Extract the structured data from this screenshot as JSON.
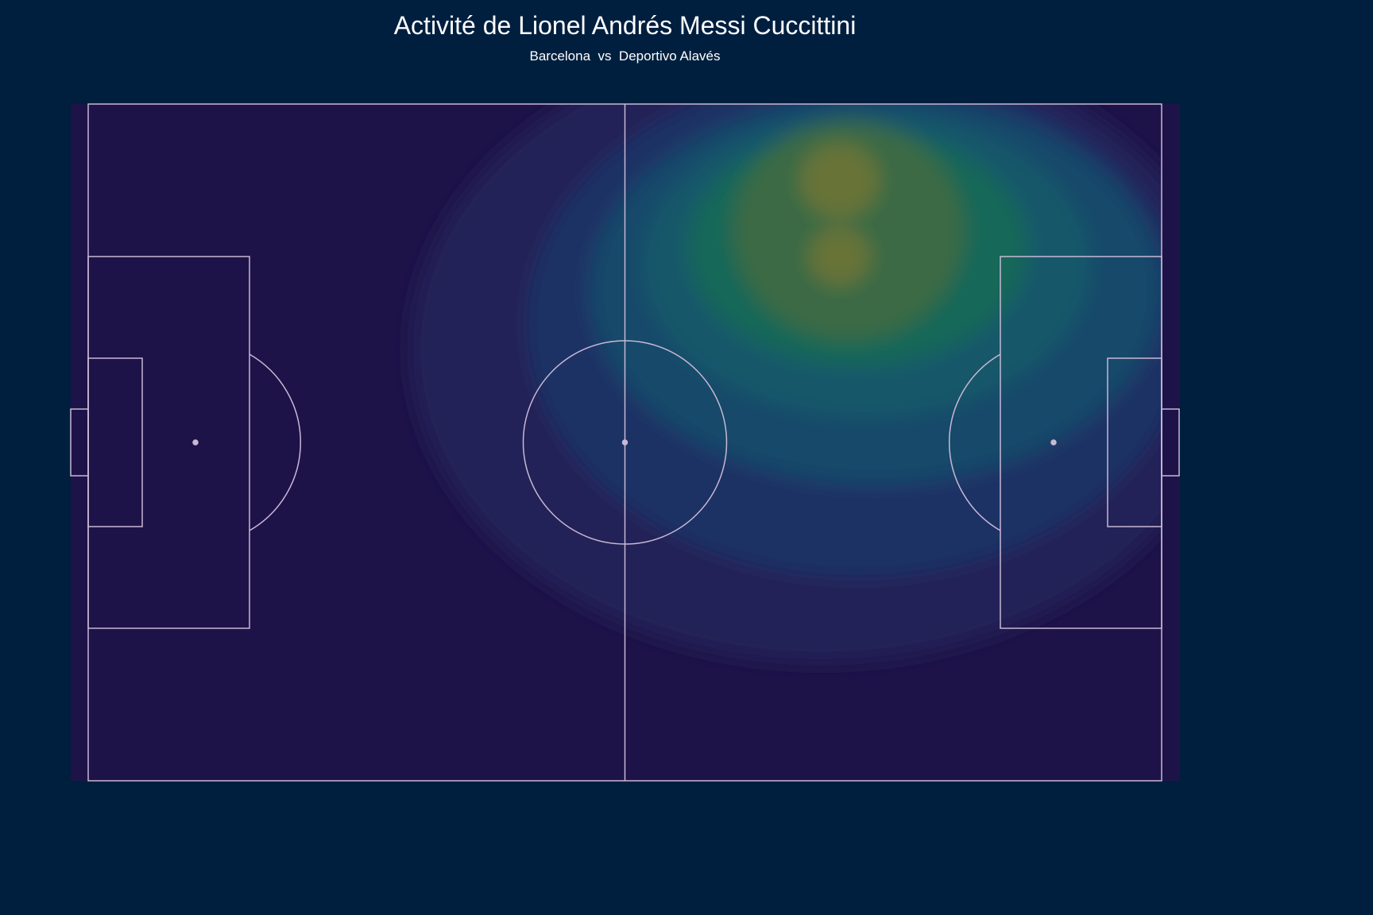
{
  "title": "Activité de Lionel Andrés Messi Cuccittini",
  "subtitle": "Barcelona  vs  Deportivo Alavés",
  "colors": {
    "background": "#001f3f",
    "pitch": "#1e1348",
    "lines": "#c9b8d6",
    "density_low": "#22235a",
    "density_mid": "#17556b",
    "density_high": "#7a7a35"
  },
  "chart_data": {
    "type": "heatmap",
    "kind": "kernel-density-pitch",
    "title": "Activité de Lionel Andrés Messi Cuccittini",
    "subtitle": "Barcelona  vs  Deportivo Alavés",
    "pitch_length": 120,
    "pitch_width": 80,
    "xlim": [
      0,
      120
    ],
    "ylim": [
      0,
      80
    ],
    "grid": false,
    "legend": "none",
    "density_levels": [
      {
        "level": 1,
        "color": "#22235a",
        "opacity": 0.95,
        "cx": 82,
        "cy": 29,
        "rx": 46,
        "ry": 37
      },
      {
        "level": 2,
        "color": "#1c3566",
        "opacity": 0.95,
        "cx": 86,
        "cy": 26,
        "rx": 37,
        "ry": 30
      },
      {
        "level": 3,
        "color": "#144a6b",
        "opacity": 0.95,
        "cx": 88,
        "cy": 22,
        "rx": 32,
        "ry": 23
      },
      {
        "level": 4,
        "color": "#125a6a",
        "opacity": 0.95,
        "cx": 87,
        "cy": 19,
        "rx": 25,
        "ry": 18
      },
      {
        "level": 5,
        "color": "#1a6858",
        "opacity": 0.95,
        "cx": 86,
        "cy": 17,
        "rx": 19,
        "ry": 14
      },
      {
        "level": 6,
        "color": "#3d6a44",
        "opacity": 0.95,
        "cx": 85,
        "cy": 15,
        "rx": 13,
        "ry": 13
      },
      {
        "level": 7,
        "color": "#6a7437",
        "opacity": 0.95,
        "cx": 84,
        "cy": 9,
        "rx": 4.5,
        "ry": 4.5
      },
      {
        "level": 7,
        "color": "#6a7437",
        "opacity": 0.95,
        "cx": 84,
        "cy": 18,
        "rx": 3.5,
        "ry": 3.5
      }
    ]
  }
}
